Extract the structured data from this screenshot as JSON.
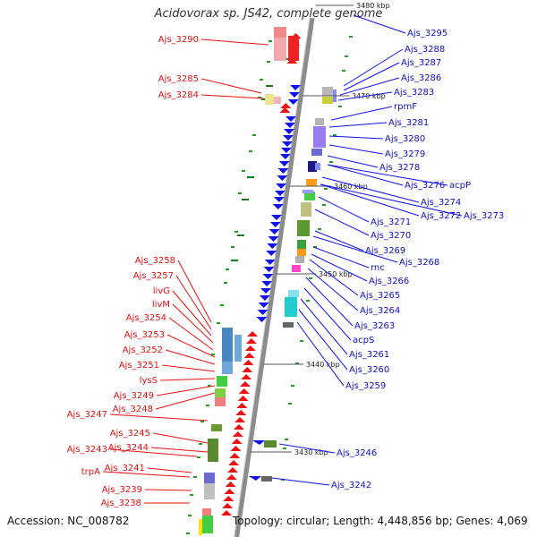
{
  "title": "Acidovorax sp. JS42, complete genome",
  "accession_text": "Accession: NC_008782",
  "summary_text": "Topology: circular; Length: 4,448,856 bp; Genes: 4,069",
  "colors": {
    "forward": "#ee1111",
    "reverse": "#1111ee",
    "backbone": "#8c8c8c",
    "gc_dot": "#22a022"
  },
  "scale_ticks": [
    {
      "label": "3480 kbp"
    },
    {
      "label": "3470 kbp"
    },
    {
      "label": "3460 kbp"
    },
    {
      "label": "3450 kbp"
    },
    {
      "label": "3440 kbp"
    },
    {
      "label": "3430 kbp"
    }
  ],
  "left_labels": [
    "Ajs_3290",
    "Ajs_3285",
    "Ajs_3284",
    "Ajs_3258",
    "Ajs_3257",
    "livG",
    "livM",
    "Ajs_3254",
    "Ajs_3253",
    "Ajs_3252",
    "Ajs_3251",
    "lysS",
    "Ajs_3249",
    "Ajs_3248",
    "Ajs_3247",
    "Ajs_3245",
    "Ajs_3244",
    "Ajs_3243",
    "Ajs_3241",
    "trpA",
    "Ajs_3239",
    "Ajs_3238"
  ],
  "right_labels": [
    "Ajs_3295",
    "Ajs_3288",
    "Ajs_3287",
    "Ajs_3286",
    "Ajs_3283",
    "rpmF",
    "Ajs_3281",
    "Ajs_3280",
    "Ajs_3279",
    "Ajs_3278",
    "Ajs_3276",
    "acpP",
    "Ajs_3274",
    "Ajs_3272",
    "Ajs_3273",
    "Ajs_3271",
    "Ajs_3270",
    "Ajs_3269",
    "Ajs_3268",
    "rnc",
    "Ajs_3266",
    "Ajs_3265",
    "Ajs_3264",
    "Ajs_3263",
    "acpS",
    "Ajs_3261",
    "Ajs_3260",
    "Ajs_3259",
    "Ajs_3246",
    "Ajs_3242"
  ]
}
